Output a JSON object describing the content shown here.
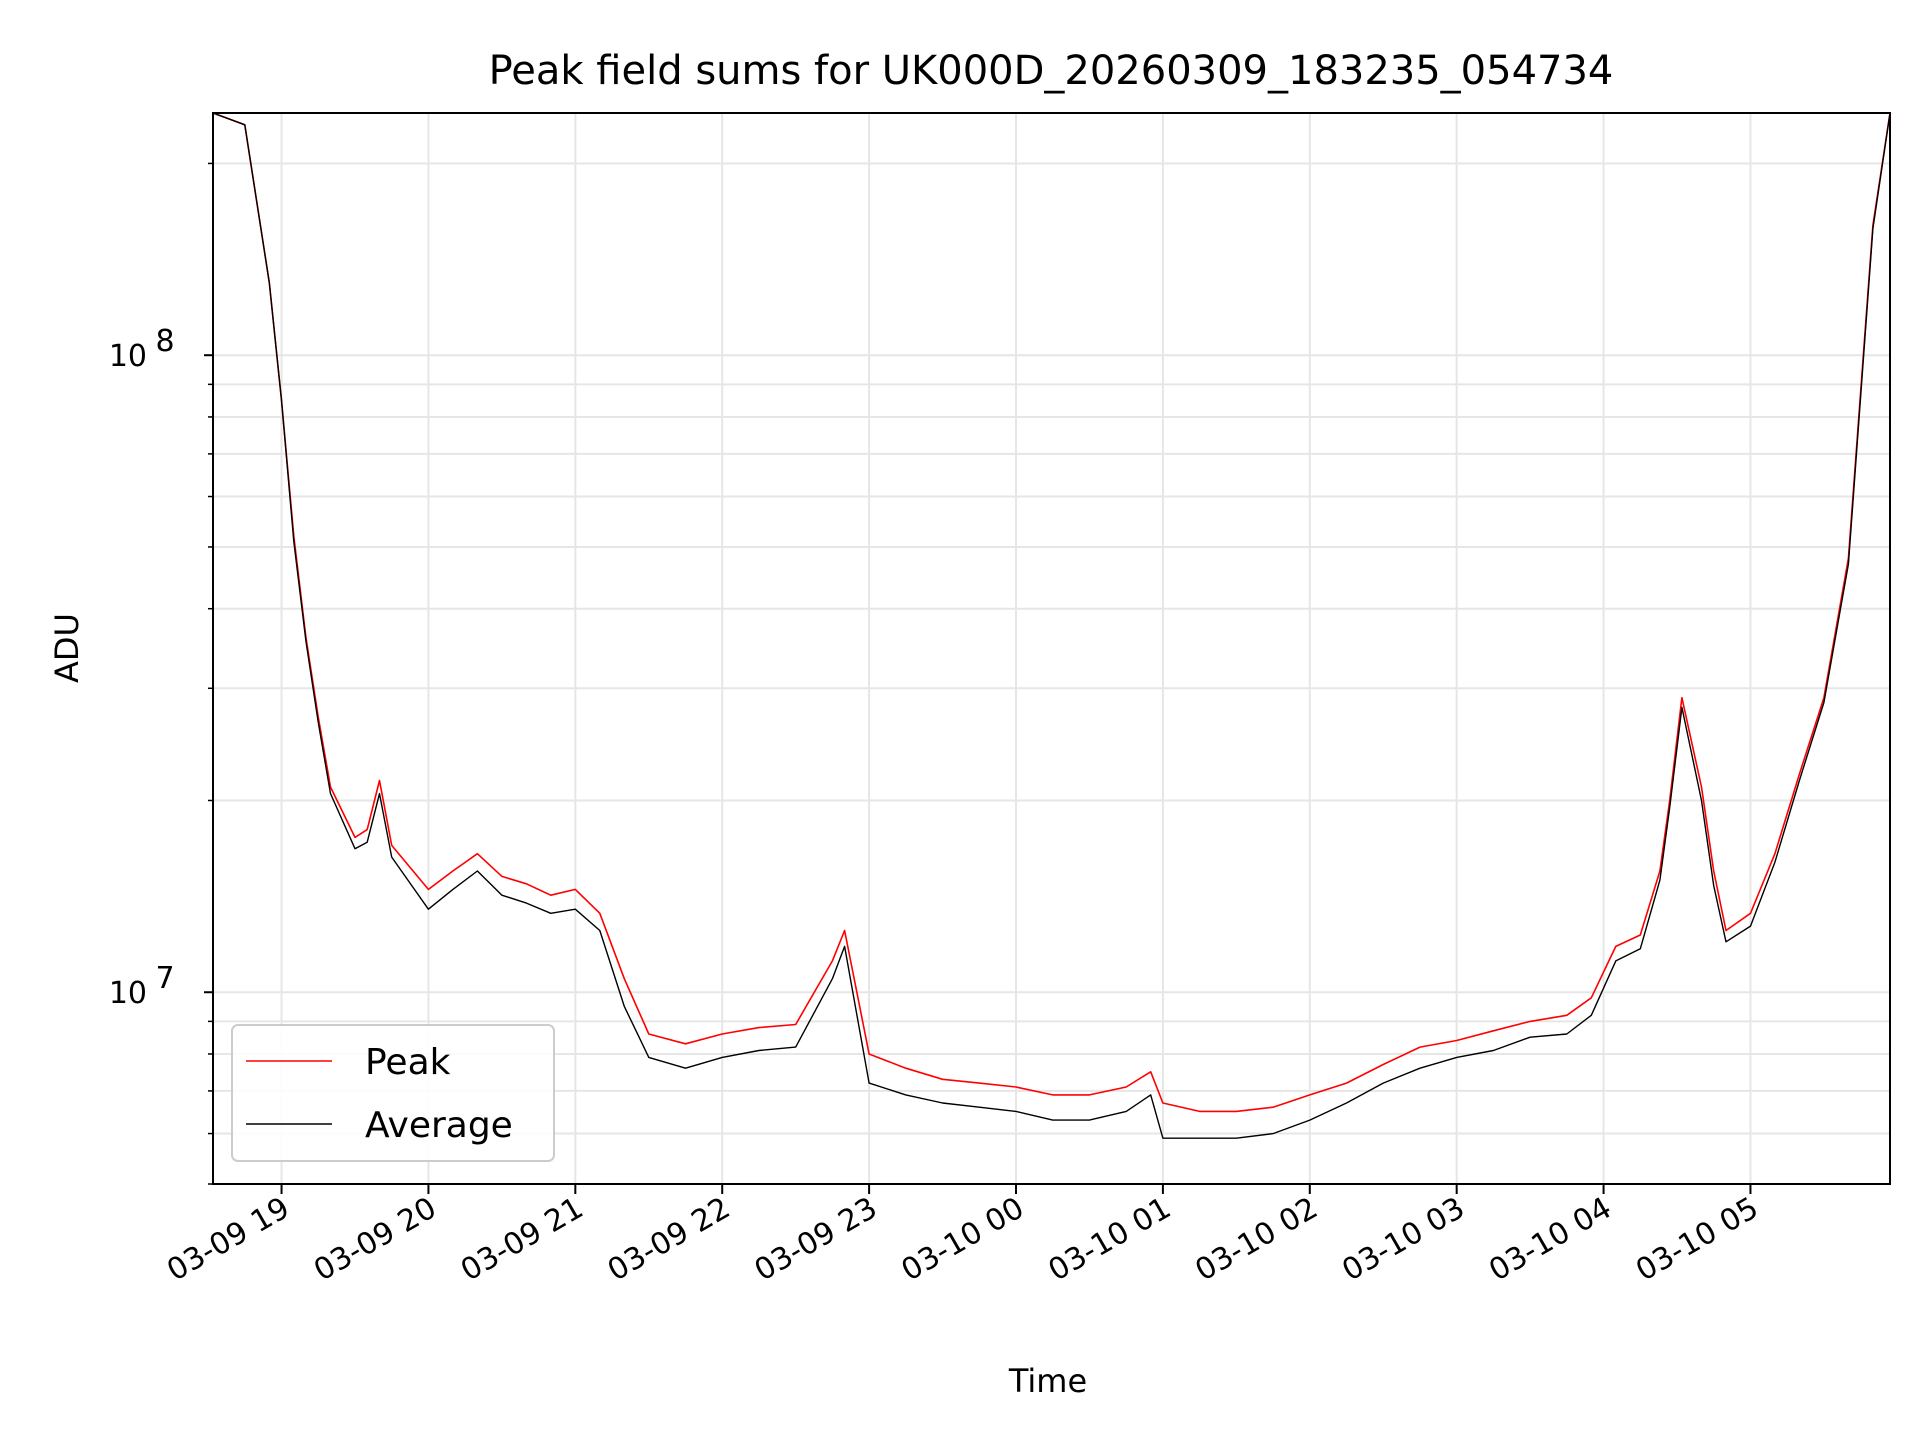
{
  "chart_data": {
    "type": "line",
    "title": "Peak field sums for UK000D_20260309_183235_054734",
    "xlabel": "Time",
    "ylabel": "ADU",
    "y_scale": "log",
    "ylim": [
      5000000,
      240000000
    ],
    "xlim": [
      "2026-03-09 18:32",
      "2026-03-10 05:57"
    ],
    "x_tick_labels": [
      "03-09 19",
      "03-09 20",
      "03-09 21",
      "03-09 22",
      "03-09 23",
      "03-10 00",
      "03-10 01",
      "03-10 02",
      "03-10 03",
      "03-10 04",
      "03-10 05"
    ],
    "x_ticks": [
      "2026-03-09 19:00",
      "2026-03-09 20:00",
      "2026-03-09 21:00",
      "2026-03-09 22:00",
      "2026-03-09 23:00",
      "2026-03-10 00:00",
      "2026-03-10 01:00",
      "2026-03-10 02:00",
      "2026-03-10 03:00",
      "2026-03-10 04:00",
      "2026-03-10 05:00"
    ],
    "y_tick_labels": [
      {
        "base": "10",
        "exp": "7",
        "value": 10000000
      },
      {
        "base": "10",
        "exp": "8",
        "value": 100000000
      }
    ],
    "grid": true,
    "legend": {
      "position": "lower-left"
    },
    "x": [
      "2026-03-09 18:32",
      "2026-03-09 18:45",
      "2026-03-09 18:55",
      "2026-03-09 19:00",
      "2026-03-09 19:05",
      "2026-03-09 19:10",
      "2026-03-09 19:15",
      "2026-03-09 19:20",
      "2026-03-09 19:30",
      "2026-03-09 19:35",
      "2026-03-09 19:40",
      "2026-03-09 19:45",
      "2026-03-09 20:00",
      "2026-03-09 20:10",
      "2026-03-09 20:20",
      "2026-03-09 20:30",
      "2026-03-09 20:40",
      "2026-03-09 20:50",
      "2026-03-09 21:00",
      "2026-03-09 21:10",
      "2026-03-09 21:20",
      "2026-03-09 21:30",
      "2026-03-09 21:45",
      "2026-03-09 22:00",
      "2026-03-09 22:15",
      "2026-03-09 22:30",
      "2026-03-09 22:45",
      "2026-03-09 22:50",
      "2026-03-09 23:00",
      "2026-03-09 23:15",
      "2026-03-09 23:30",
      "2026-03-09 23:45",
      "2026-03-10 00:00",
      "2026-03-10 00:15",
      "2026-03-10 00:30",
      "2026-03-10 00:45",
      "2026-03-10 00:55",
      "2026-03-10 01:00",
      "2026-03-10 01:15",
      "2026-03-10 01:30",
      "2026-03-10 01:45",
      "2026-03-10 02:00",
      "2026-03-10 02:15",
      "2026-03-10 02:30",
      "2026-03-10 02:45",
      "2026-03-10 03:00",
      "2026-03-10 03:15",
      "2026-03-10 03:30",
      "2026-03-10 03:45",
      "2026-03-10 03:55",
      "2026-03-10 04:05",
      "2026-03-10 04:15",
      "2026-03-10 04:23",
      "2026-03-10 04:27",
      "2026-03-10 04:32",
      "2026-03-10 04:40",
      "2026-03-10 04:45",
      "2026-03-10 04:50",
      "2026-03-10 05:00",
      "2026-03-10 05:10",
      "2026-03-10 05:20",
      "2026-03-10 05:30",
      "2026-03-10 05:40",
      "2026-03-10 05:50",
      "2026-03-10 05:57"
    ],
    "series": [
      {
        "name": "Peak",
        "color": "#ff0000",
        "values": [
          240000000,
          230000000,
          130000000,
          85000000,
          52000000,
          36000000,
          27000000,
          21000000,
          17500000,
          18000000,
          21500000,
          17000000,
          14500000,
          15500000,
          16500000,
          15200000,
          14800000,
          14200000,
          14500000,
          13300000,
          10500000,
          8600000,
          8300000,
          8600000,
          8800000,
          8900000,
          11200000,
          12500000,
          8000000,
          7600000,
          7300000,
          7200000,
          7100000,
          6900000,
          6900000,
          7100000,
          7500000,
          6700000,
          6500000,
          6500000,
          6600000,
          6900000,
          7200000,
          7700000,
          8200000,
          8400000,
          8700000,
          9000000,
          9200000,
          9800000,
          11800000,
          12300000,
          15500000,
          20000000,
          29000000,
          21000000,
          15500000,
          12500000,
          13300000,
          16500000,
          22000000,
          29000000,
          48000000,
          160000000,
          240000000
        ]
      },
      {
        "name": "Average",
        "color": "#000000",
        "values": [
          240000000,
          230000000,
          130000000,
          85000000,
          51000000,
          35500000,
          26500000,
          20500000,
          16800000,
          17200000,
          20500000,
          16300000,
          13500000,
          14500000,
          15500000,
          14200000,
          13800000,
          13300000,
          13500000,
          12500000,
          9500000,
          7900000,
          7600000,
          7900000,
          8100000,
          8200000,
          10500000,
          11800000,
          7200000,
          6900000,
          6700000,
          6600000,
          6500000,
          6300000,
          6300000,
          6500000,
          6900000,
          5900000,
          5900000,
          5900000,
          6000000,
          6300000,
          6700000,
          7200000,
          7600000,
          7900000,
          8100000,
          8500000,
          8600000,
          9200000,
          11200000,
          11700000,
          15000000,
          19500000,
          28000000,
          20000000,
          14700000,
          12000000,
          12700000,
          16000000,
          21500000,
          28500000,
          47000000,
          158000000,
          240000000
        ]
      }
    ]
  }
}
